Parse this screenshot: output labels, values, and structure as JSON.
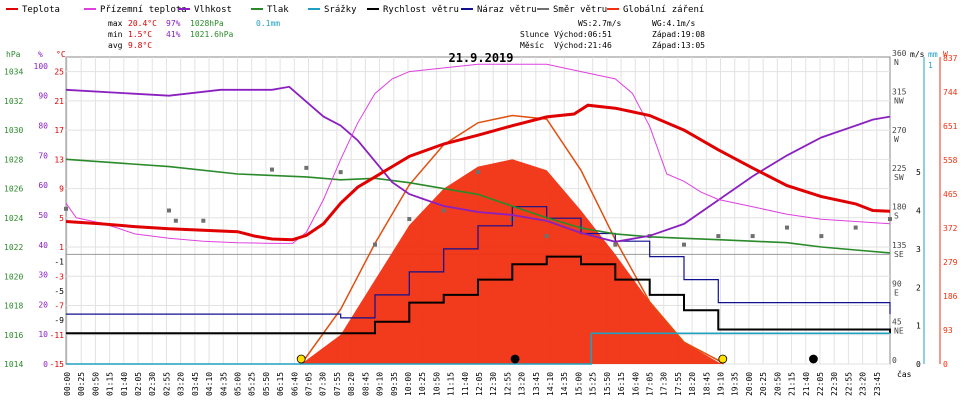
{
  "legend": [
    {
      "label": "Teplota",
      "color": "#e00000"
    },
    {
      "label": "Přízemní teplota",
      "color": "#e040e0"
    },
    {
      "label": "Vlhkost",
      "color": "#8a20c0"
    },
    {
      "label": "Tlak",
      "color": "#2a8a2a"
    },
    {
      "label": "Srážky",
      "color": "#20a0c0"
    },
    {
      "label": "Rychlost větru",
      "color": "#000000"
    },
    {
      "label": "Náraz větru",
      "color": "#101090"
    },
    {
      "label": "Směr větru",
      "color": "#707070"
    },
    {
      "label": "Globální záření",
      "color": "#f03010"
    }
  ],
  "stats": {
    "max_label": "max",
    "max_temp": "20.4°C",
    "max_hum": "97%",
    "max_press": "1028hPa",
    "max_rain": "0.1mm",
    "min_label": "min",
    "min_temp": "1.5°C",
    "min_hum": "41%",
    "min_press": "1021.6hPa",
    "avg_label": "avg",
    "avg_temp": "9.8°C"
  },
  "astro": {
    "ws": "WS:2.7m/s",
    "wg": "WG:4.1m/s",
    "sun_label": "Slunce",
    "sunrise": "Východ:06:51",
    "sunset": "Západ:19:08",
    "moon_label": "Měsíc",
    "moonrise": "Východ:21:46",
    "moonset": "Západ:13:05"
  },
  "chart_data": {
    "type": "line",
    "title": "21.9.2019",
    "xlabel": "čas",
    "x_ticks": [
      "00:00",
      "00:25",
      "00:50",
      "01:15",
      "01:40",
      "02:05",
      "02:30",
      "02:55",
      "03:20",
      "03:45",
      "04:10",
      "04:35",
      "05:00",
      "05:25",
      "05:50",
      "06:15",
      "06:40",
      "07:05",
      "07:30",
      "07:55",
      "08:20",
      "08:45",
      "09:10",
      "09:35",
      "10:00",
      "10:25",
      "10:50",
      "11:15",
      "11:40",
      "12:05",
      "12:30",
      "12:55",
      "13:20",
      "13:45",
      "14:10",
      "14:35",
      "15:00",
      "15:25",
      "15:50",
      "16:15",
      "16:40",
      "17:05",
      "17:30",
      "17:55",
      "18:20",
      "18:45",
      "19:10",
      "19:35",
      "20:00",
      "20:25",
      "20:50",
      "21:15",
      "21:40",
      "22:05",
      "22:30",
      "22:55",
      "23:20",
      "23:45"
    ],
    "axes": {
      "hpa": {
        "label": "hPa",
        "ticks": [
          "1034",
          "1032",
          "1030",
          "1028",
          "1026",
          "1024",
          "1022",
          "1020",
          "1018",
          "1016",
          "1014"
        ],
        "range": [
          1014,
          1035
        ],
        "color": "#2a8a2a"
      },
      "pct": {
        "label": "%",
        "ticks": [
          "100",
          "90",
          "80",
          "70",
          "60",
          "50",
          "40",
          "30",
          "20",
          "10",
          "0"
        ],
        "range": [
          0,
          103
        ],
        "color": "#8a20c0"
      },
      "temp": {
        "label": "°C",
        "ticks": [
          "25",
          "21",
          "17",
          "13",
          "9",
          "5",
          "1",
          "-3",
          "-7",
          "-11",
          "-15"
        ],
        "range": [
          -15,
          27
        ],
        "color": "#e00000"
      },
      "temp_extra": [
        "-1",
        "-5",
        "-9"
      ],
      "dir": {
        "label": "",
        "ticks": [
          "360",
          "315",
          "270",
          "225",
          "180",
          "135",
          "90",
          "45",
          "0"
        ],
        "names": [
          "N",
          "NW",
          "W",
          "SW",
          "S",
          "SE",
          "E",
          "NE",
          ""
        ],
        "range": [
          0,
          360
        ]
      },
      "ms": {
        "label": "m/s",
        "ticks": [
          "5",
          "4",
          "3",
          "2",
          "1",
          "0"
        ],
        "range": [
          0,
          8
        ]
      },
      "mm": {
        "label": "mm",
        "ticks": [
          "1"
        ],
        "range": [
          0,
          1
        ]
      },
      "wm2": {
        "label": "W",
        "ticks": [
          "837",
          "744",
          "651",
          "558",
          "465",
          "372",
          "279",
          "186",
          "93",
          "0"
        ],
        "range": [
          0,
          840
        ]
      }
    },
    "series": [
      {
        "name": "Teplota",
        "unit": "°C",
        "points": [
          [
            0,
            4.5
          ],
          [
            1,
            4.2
          ],
          [
            2,
            3.8
          ],
          [
            3,
            3.5
          ],
          [
            4,
            3.3
          ],
          [
            5,
            3.1
          ],
          [
            5.5,
            2.5
          ],
          [
            6,
            2.1
          ],
          [
            6.6,
            2.0
          ],
          [
            7,
            2.6
          ],
          [
            7.5,
            4.2
          ],
          [
            8,
            7.0
          ],
          [
            8.5,
            9.2
          ],
          [
            9,
            10.6
          ],
          [
            9.5,
            12.0
          ],
          [
            10,
            13.4
          ],
          [
            11,
            15.1
          ],
          [
            12,
            16.3
          ],
          [
            13,
            17.6
          ],
          [
            14,
            18.8
          ],
          [
            14.8,
            19.2
          ],
          [
            15.2,
            20.4
          ],
          [
            16,
            20.0
          ],
          [
            17,
            19.0
          ],
          [
            18,
            17.0
          ],
          [
            19,
            14.3
          ],
          [
            20,
            11.8
          ],
          [
            21,
            9.4
          ],
          [
            22,
            7.9
          ],
          [
            23,
            6.9
          ],
          [
            23.5,
            6.0
          ],
          [
            24,
            5.9
          ]
        ]
      },
      {
        "name": "Přízemní teplota",
        "unit": "°C",
        "points": [
          [
            0,
            7.0
          ],
          [
            0.3,
            5.0
          ],
          [
            1,
            4.3
          ],
          [
            1.5,
            3.6
          ],
          [
            2,
            2.8
          ],
          [
            3,
            2.2
          ],
          [
            4,
            1.8
          ],
          [
            5,
            1.6
          ],
          [
            6,
            1.5
          ],
          [
            6.6,
            1.5
          ],
          [
            7,
            3.0
          ],
          [
            7.5,
            7.5
          ],
          [
            8,
            13.0
          ],
          [
            8.5,
            18.0
          ],
          [
            9,
            22.0
          ],
          [
            9.5,
            24.0
          ],
          [
            10,
            25.0
          ],
          [
            12,
            26.0
          ],
          [
            14,
            26.0
          ],
          [
            15,
            25.0
          ],
          [
            16,
            24.0
          ],
          [
            16.5,
            22.0
          ],
          [
            17,
            17.5
          ],
          [
            17.5,
            11.0
          ],
          [
            18,
            10.0
          ],
          [
            18.5,
            8.5
          ],
          [
            19,
            7.5
          ],
          [
            20,
            6.5
          ],
          [
            21,
            5.5
          ],
          [
            22,
            4.8
          ],
          [
            23,
            4.5
          ],
          [
            24,
            4.2
          ]
        ]
      },
      {
        "name": "Vlhkost",
        "unit": "%",
        "points": [
          [
            0,
            92
          ],
          [
            3,
            90
          ],
          [
            4.5,
            92
          ],
          [
            6,
            92
          ],
          [
            6.5,
            93
          ],
          [
            7,
            88
          ],
          [
            7.5,
            83
          ],
          [
            8,
            80
          ],
          [
            8.5,
            75
          ],
          [
            9,
            68
          ],
          [
            9.5,
            61
          ],
          [
            10,
            57
          ],
          [
            10.5,
            55
          ],
          [
            11,
            53
          ],
          [
            12,
            51
          ],
          [
            13,
            50
          ],
          [
            14,
            48
          ],
          [
            15,
            44
          ],
          [
            16,
            41
          ],
          [
            17,
            43
          ],
          [
            18,
            47
          ],
          [
            19,
            55
          ],
          [
            20,
            63
          ],
          [
            21,
            70
          ],
          [
            22,
            76
          ],
          [
            23,
            80
          ],
          [
            23.5,
            82
          ],
          [
            24,
            83
          ]
        ]
      },
      {
        "name": "Tlak",
        "unit": "hPa",
        "points": [
          [
            0,
            1028.0
          ],
          [
            3,
            1027.5
          ],
          [
            5,
            1027.0
          ],
          [
            7,
            1026.8
          ],
          [
            8,
            1026.6
          ],
          [
            9,
            1026.7
          ],
          [
            10,
            1026.4
          ],
          [
            11,
            1026.0
          ],
          [
            12,
            1025.6
          ],
          [
            13,
            1024.8
          ],
          [
            14,
            1024.0
          ],
          [
            15,
            1023.3
          ],
          [
            16,
            1022.9
          ],
          [
            17,
            1022.7
          ],
          [
            18,
            1022.6
          ],
          [
            19,
            1022.5
          ],
          [
            20,
            1022.4
          ],
          [
            21,
            1022.3
          ],
          [
            22,
            1022.0
          ],
          [
            23,
            1021.8
          ],
          [
            24,
            1021.6
          ]
        ]
      },
      {
        "name": "Srážky",
        "unit": "mm",
        "points": [
          [
            0,
            0
          ],
          [
            14.9,
            0
          ],
          [
            15.3,
            0.1
          ],
          [
            24,
            0.1
          ]
        ]
      },
      {
        "name": "Rychlost větru",
        "unit": "m/s",
        "points": [
          [
            0,
            0.8
          ],
          [
            4,
            0.8
          ],
          [
            8,
            0.8
          ],
          [
            9,
            1.1
          ],
          [
            10,
            1.6
          ],
          [
            11,
            1.8
          ],
          [
            12,
            2.2
          ],
          [
            13,
            2.6
          ],
          [
            14,
            2.8
          ],
          [
            15,
            2.6
          ],
          [
            16,
            2.2
          ],
          [
            17,
            1.8
          ],
          [
            18,
            1.4
          ],
          [
            19,
            0.9
          ],
          [
            24,
            0.8
          ]
        ]
      },
      {
        "name": "Náraz větru",
        "unit": "m/s",
        "points": [
          [
            0,
            1.3
          ],
          [
            4,
            1.3
          ],
          [
            8,
            1.2
          ],
          [
            9,
            1.8
          ],
          [
            10,
            2.4
          ],
          [
            11,
            3.0
          ],
          [
            12,
            3.6
          ],
          [
            13,
            4.1
          ],
          [
            14,
            3.8
          ],
          [
            15,
            3.4
          ],
          [
            16,
            3.2
          ],
          [
            17,
            2.8
          ],
          [
            18,
            2.2
          ],
          [
            19,
            1.6
          ],
          [
            24,
            1.3
          ]
        ]
      },
      {
        "name": "Směr větru",
        "unit": "°",
        "points": [
          [
            0,
            182
          ],
          [
            3,
            180
          ],
          [
            3.2,
            168
          ],
          [
            4,
            168
          ],
          [
            6,
            228
          ],
          [
            7,
            230
          ],
          [
            8,
            225
          ],
          [
            9,
            140
          ],
          [
            10,
            170
          ],
          [
            11,
            180
          ],
          [
            12,
            225
          ],
          [
            13,
            170
          ],
          [
            14,
            150
          ],
          [
            15,
            160
          ],
          [
            16,
            140
          ],
          [
            17,
            150
          ],
          [
            18,
            140
          ],
          [
            19,
            150
          ],
          [
            20,
            150
          ],
          [
            21,
            160
          ],
          [
            22,
            150
          ],
          [
            23,
            160
          ],
          [
            24,
            170
          ]
        ]
      },
      {
        "name": "Globální záření",
        "unit": "W",
        "points": [
          [
            6.85,
            0
          ],
          [
            8,
            80
          ],
          [
            9,
            230
          ],
          [
            10,
            380
          ],
          [
            11,
            480
          ],
          [
            12,
            540
          ],
          [
            13,
            560
          ],
          [
            14,
            530
          ],
          [
            15,
            420
          ],
          [
            16,
            300
          ],
          [
            17,
            170
          ],
          [
            18,
            60
          ],
          [
            19,
            5
          ],
          [
            19.15,
            0
          ]
        ]
      }
    ],
    "theoretical_radiation": {
      "points": [
        [
          6.85,
          0
        ],
        [
          8,
          150
        ],
        [
          9,
          330
        ],
        [
          10,
          490
        ],
        [
          11,
          600
        ],
        [
          12,
          660
        ],
        [
          13,
          680
        ],
        [
          14,
          670
        ],
        [
          15,
          530
        ],
        [
          16,
          340
        ],
        [
          17,
          170
        ],
        [
          18,
          60
        ],
        [
          19,
          10
        ],
        [
          19.15,
          0
        ]
      ]
    },
    "markers": [
      {
        "type": "sunrise",
        "time": 6.85
      },
      {
        "type": "moonset",
        "time": 13.08
      },
      {
        "type": "sunset",
        "time": 19.13
      },
      {
        "type": "moonrise",
        "time": 21.77
      }
    ],
    "grid": true
  }
}
